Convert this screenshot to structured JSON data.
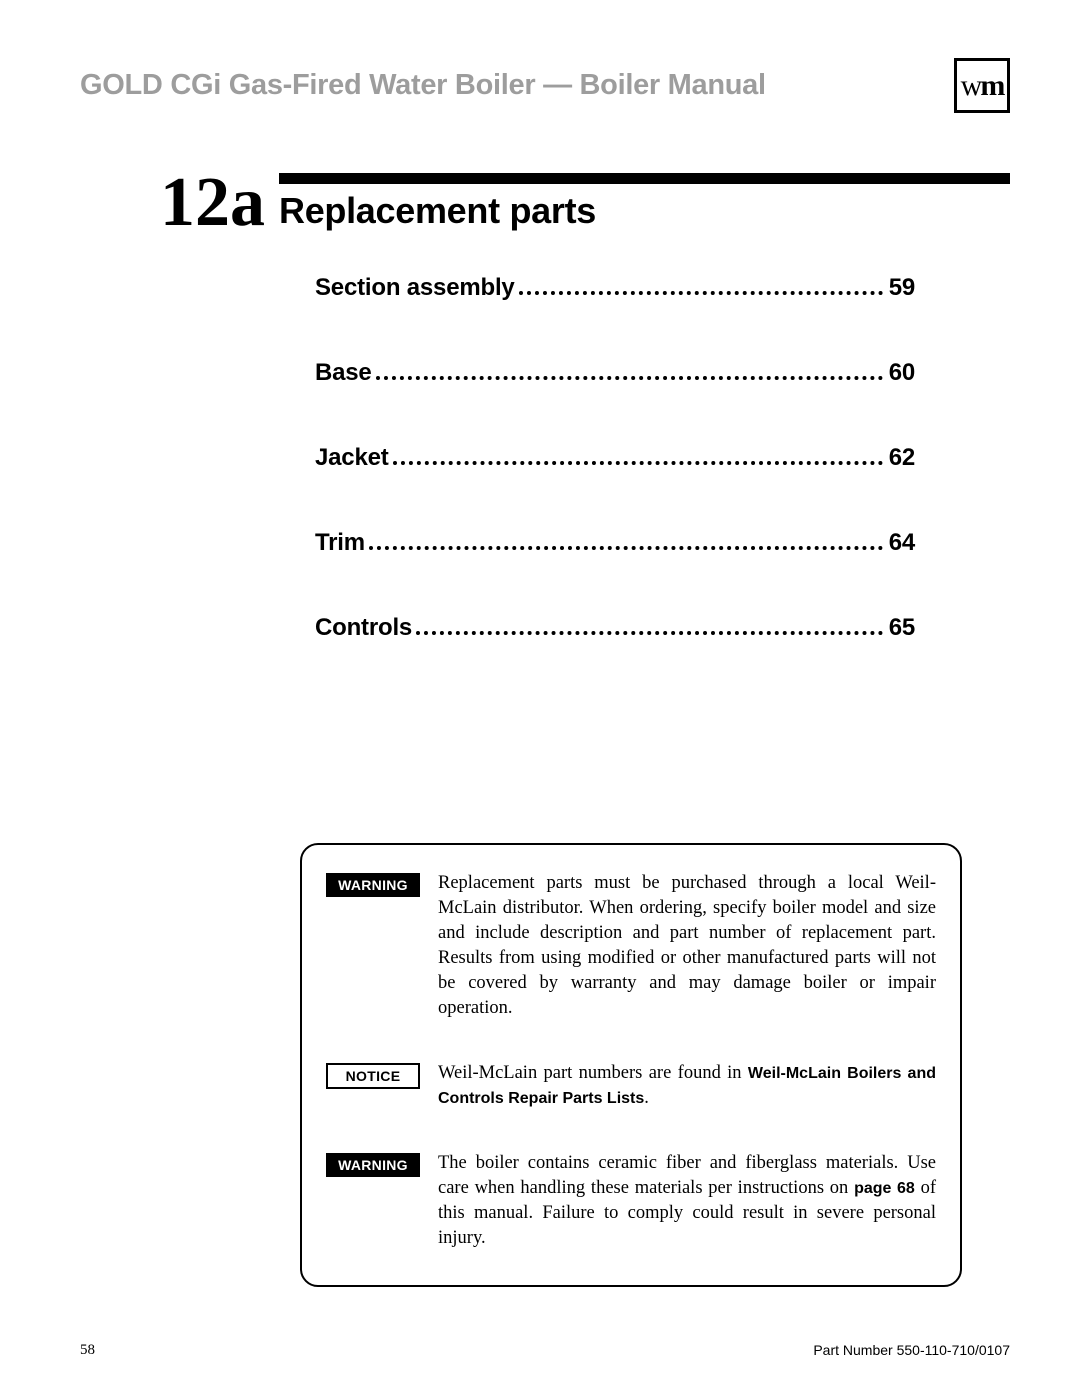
{
  "header": {
    "title": "GOLD CGi Gas-Fired Water Boiler — Boiler Manual",
    "logo_w": "w",
    "logo_m": "m"
  },
  "section": {
    "number": "12a",
    "title": "Replacement parts"
  },
  "toc": [
    {
      "label": "Section assembly",
      "page": "59"
    },
    {
      "label": "Base",
      "page": "60"
    },
    {
      "label": "Jacket",
      "page": "62"
    },
    {
      "label": "Trim",
      "page": "64"
    },
    {
      "label": "Controls",
      "page": "65"
    }
  ],
  "notices": {
    "n0": {
      "badge": "WARNING",
      "badge_type": "warning",
      "text": "Replacement parts must be purchased through a local Weil-McLain distributor. When ordering, specify boiler model and size and include description and part number of replacement part. Results from using modified or other manufactured parts will not be covered by warranty and may damage boiler or impair operation."
    },
    "n1": {
      "badge": "NOTICE",
      "badge_type": "notice",
      "text_before": "Weil-McLain part numbers are found in ",
      "bold": "Weil-McLain Boilers and Controls Repair Parts Lists",
      "text_after": "."
    },
    "n2": {
      "badge": "WARNING",
      "badge_type": "warning",
      "text_before": "The boiler contains ceramic fiber and fiberglass materials. Use care when handling these materials per instructions on ",
      "bold": "page 68",
      "text_after": " of this manual. Failure to comply could result in severe personal injury."
    }
  },
  "footer": {
    "page_number": "58",
    "part_number": "Part Number 550-110-710/0107"
  },
  "colors": {
    "header_gray": "#9d9d9d",
    "black": "#000000",
    "white": "#ffffff"
  }
}
